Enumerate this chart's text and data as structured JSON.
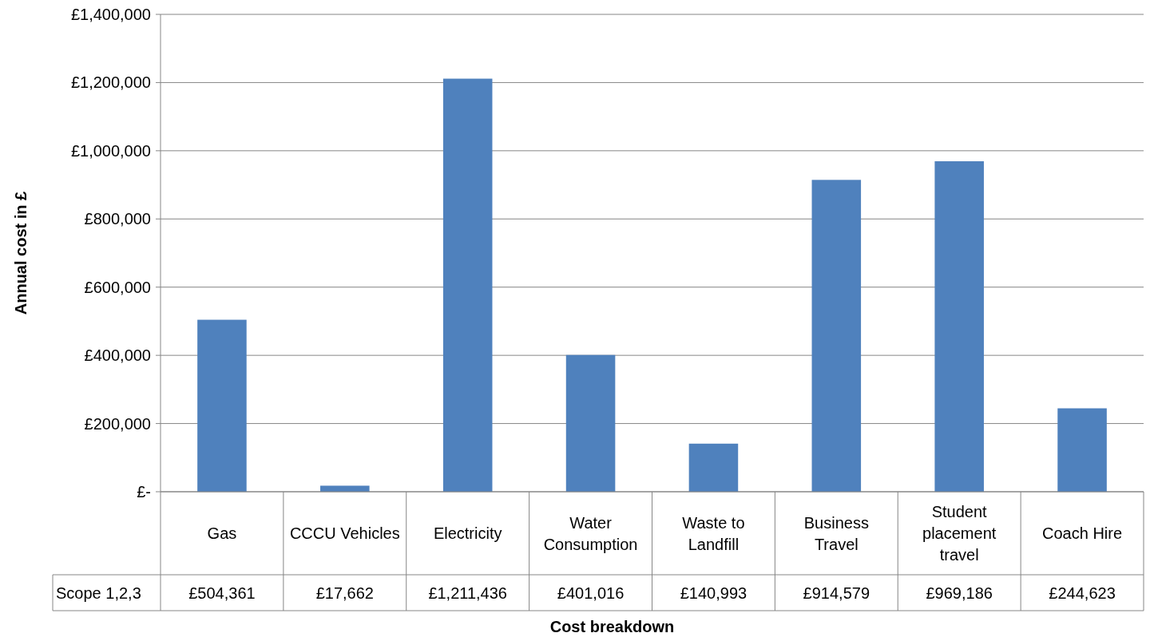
{
  "chart_data": {
    "type": "bar",
    "xlabel": "Cost breakdown",
    "ylabel": "Annual cost in £",
    "categories": [
      "Gas",
      "CCCU Vehicles",
      "Electricity",
      "Water Consumption",
      "Waste to Landfill",
      "Business Travel",
      "Student placement travel",
      "Coach Hire"
    ],
    "series": [
      {
        "name": "Scope 1,2,3",
        "color": "#4f81bd",
        "values": [
          504361,
          17662,
          1211436,
          401016,
          140993,
          914579,
          969186,
          244623
        ],
        "value_labels": [
          "£504,361",
          "£17,662",
          "£1,211,436",
          "£401,016",
          "£140,993",
          "£914,579",
          "£969,186",
          "£244,623"
        ]
      }
    ],
    "ylim": [
      0,
      1400000
    ],
    "yticks": [
      {
        "value": 0,
        "label": "£-"
      },
      {
        "value": 200000,
        "label": "£200,000"
      },
      {
        "value": 400000,
        "label": "£400,000"
      },
      {
        "value": 600000,
        "label": "£600,000"
      },
      {
        "value": 800000,
        "label": "£800,000"
      },
      {
        "value": 1000000,
        "label": "£1,000,000"
      },
      {
        "value": 1200000,
        "label": "£1,200,000"
      },
      {
        "value": 1400000,
        "label": "£1,400,000"
      }
    ],
    "grid": "y",
    "legend": false
  }
}
